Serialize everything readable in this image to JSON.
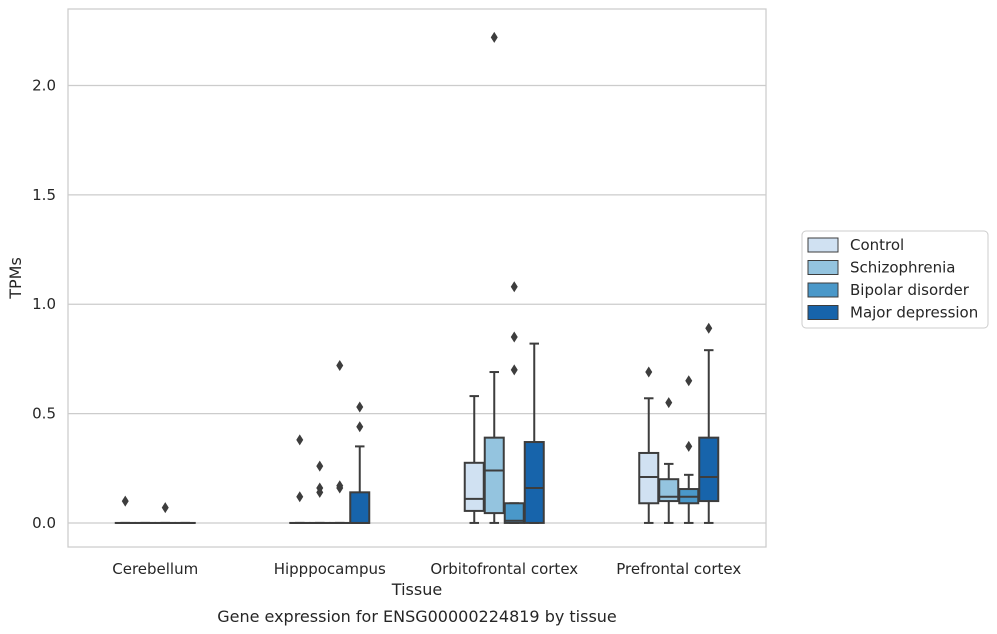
{
  "chart_data": {
    "type": "box",
    "title": "",
    "xlabel": "Tissue",
    "ylabel": "TPMs",
    "caption": "Gene expression for ENSG00000224819 by tissue",
    "categories": [
      "Cerebellum",
      "Hipppocampus",
      "Orbitofrontal cortex",
      "Prefrontal cortex"
    ],
    "ylim": [
      -0.11,
      2.35
    ],
    "yticks": [
      0.0,
      0.5,
      1.0,
      1.5,
      2.0
    ],
    "ytick_labels": [
      "0.0",
      "0.5",
      "1.0",
      "1.5",
      "2.0"
    ],
    "grid": "horizontal",
    "legend_position": "right",
    "series": [
      {
        "name": "Control",
        "color": "#d0e1f2",
        "boxes": [
          {
            "min": 0.0,
            "q1": 0.0,
            "median": 0.0,
            "q3": 0.0,
            "max": 0.0,
            "outliers": [
              0.1
            ]
          },
          {
            "min": 0.0,
            "q1": 0.0,
            "median": 0.0,
            "q3": 0.0,
            "max": 0.0,
            "outliers": [
              0.38,
              0.12
            ]
          },
          {
            "min": 0.0,
            "q1": 0.055,
            "median": 0.11,
            "q3": 0.275,
            "max": 0.58,
            "outliers": []
          },
          {
            "min": 0.0,
            "q1": 0.09,
            "median": 0.21,
            "q3": 0.32,
            "max": 0.57,
            "outliers": [
              0.69
            ]
          }
        ]
      },
      {
        "name": "Schizophrenia",
        "color": "#94c4df",
        "boxes": [
          {
            "min": 0.0,
            "q1": 0.0,
            "median": 0.0,
            "q3": 0.0,
            "max": 0.0,
            "outliers": []
          },
          {
            "min": 0.0,
            "q1": 0.0,
            "median": 0.0,
            "q3": 0.0,
            "max": 0.0,
            "outliers": [
              0.26,
              0.16,
              0.14
            ]
          },
          {
            "min": 0.0,
            "q1": 0.045,
            "median": 0.24,
            "q3": 0.39,
            "max": 0.69,
            "outliers": [
              2.22
            ]
          },
          {
            "min": 0.0,
            "q1": 0.1,
            "median": 0.12,
            "q3": 0.2,
            "max": 0.27,
            "outliers": [
              0.55
            ]
          }
        ]
      },
      {
        "name": "Bipolar disorder",
        "color": "#4a98c9",
        "boxes": [
          {
            "min": 0.0,
            "q1": 0.0,
            "median": 0.0,
            "q3": 0.0,
            "max": 0.0,
            "outliers": [
              0.07
            ]
          },
          {
            "min": 0.0,
            "q1": 0.0,
            "median": 0.0,
            "q3": 0.0,
            "max": 0.0,
            "outliers": [
              0.72,
              0.17,
              0.16
            ]
          },
          {
            "min": 0.0,
            "q1": 0.0,
            "median": 0.01,
            "q3": 0.09,
            "max": 0.09,
            "outliers": [
              1.08,
              0.85,
              0.7
            ]
          },
          {
            "min": 0.0,
            "q1": 0.09,
            "median": 0.12,
            "q3": 0.155,
            "max": 0.22,
            "outliers": [
              0.65,
              0.35
            ]
          }
        ]
      },
      {
        "name": "Major depression",
        "color": "#1764ab",
        "boxes": [
          {
            "min": 0.0,
            "q1": 0.0,
            "median": 0.0,
            "q3": 0.0,
            "max": 0.0,
            "outliers": []
          },
          {
            "min": 0.0,
            "q1": 0.0,
            "median": 0.0,
            "q3": 0.14,
            "max": 0.35,
            "outliers": [
              0.53,
              0.44
            ]
          },
          {
            "min": 0.0,
            "q1": 0.0,
            "median": 0.16,
            "q3": 0.37,
            "max": 0.82,
            "outliers": []
          },
          {
            "min": 0.0,
            "q1": 0.1,
            "median": 0.21,
            "q3": 0.39,
            "max": 0.79,
            "outliers": [
              0.89
            ]
          }
        ]
      }
    ]
  }
}
